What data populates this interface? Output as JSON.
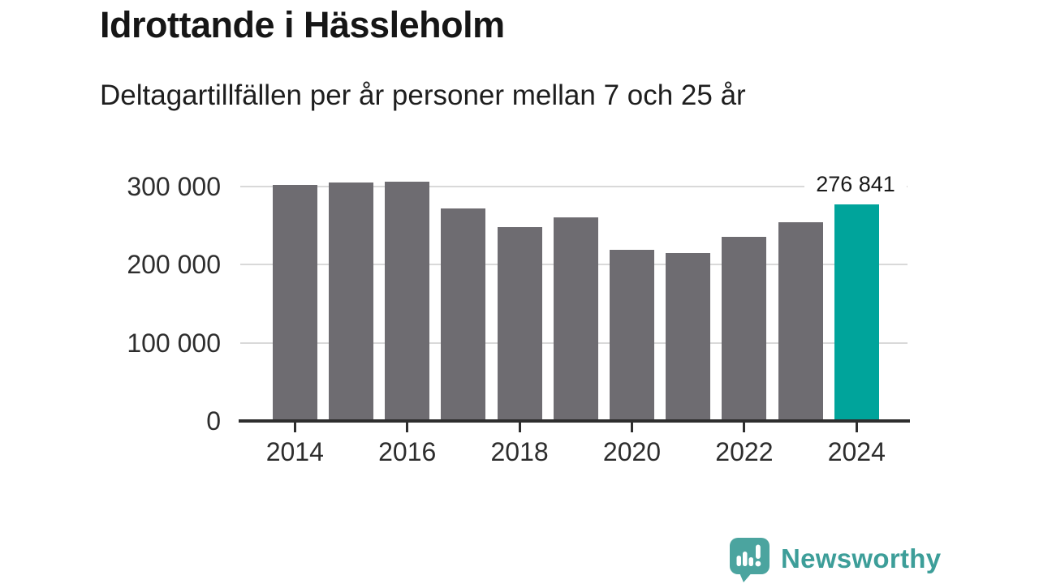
{
  "header": {
    "title": "Idrottande i Hässleholm",
    "subtitle": "Deltagartillfällen per år personer mellan 7 och 25 år"
  },
  "chart_data": {
    "type": "bar",
    "title": "Idrottande i Hässleholm",
    "subtitle": "Deltagartillfällen per år personer mellan 7 och 25 år",
    "categories": [
      "2014",
      "2015",
      "2016",
      "2017",
      "2018",
      "2019",
      "2020",
      "2021",
      "2022",
      "2023",
      "2024"
    ],
    "values": [
      302000,
      305000,
      305500,
      272000,
      248000,
      260000,
      219000,
      215000,
      235000,
      254000,
      276841
    ],
    "highlight_index": 10,
    "data_label": "276 841",
    "xlabel": "",
    "ylabel": "",
    "ylim": [
      0,
      310000
    ],
    "grid": true,
    "legend": false,
    "yticks": [
      {
        "value": 0,
        "label": "0"
      },
      {
        "value": 100000,
        "label": "100 000"
      },
      {
        "value": 200000,
        "label": "200 000"
      },
      {
        "value": 300000,
        "label": "300 000"
      }
    ],
    "xticks": [
      {
        "year": 2014,
        "label": "2014"
      },
      {
        "year": 2016,
        "label": "2016"
      },
      {
        "year": 2018,
        "label": "2018"
      },
      {
        "year": 2020,
        "label": "2020"
      },
      {
        "year": 2022,
        "label": "2022"
      },
      {
        "year": 2024,
        "label": "2024"
      }
    ],
    "colors": {
      "bar": "#6e6c71",
      "highlight": "#00a49b",
      "gridline": "#d9d9d9",
      "axis": "#2e2e2e",
      "text": "#2d2d2d"
    }
  },
  "footer": {
    "brand": "Newsworthy",
    "brand_color": "#3d9e99",
    "logo_color": "#4ba49f"
  }
}
